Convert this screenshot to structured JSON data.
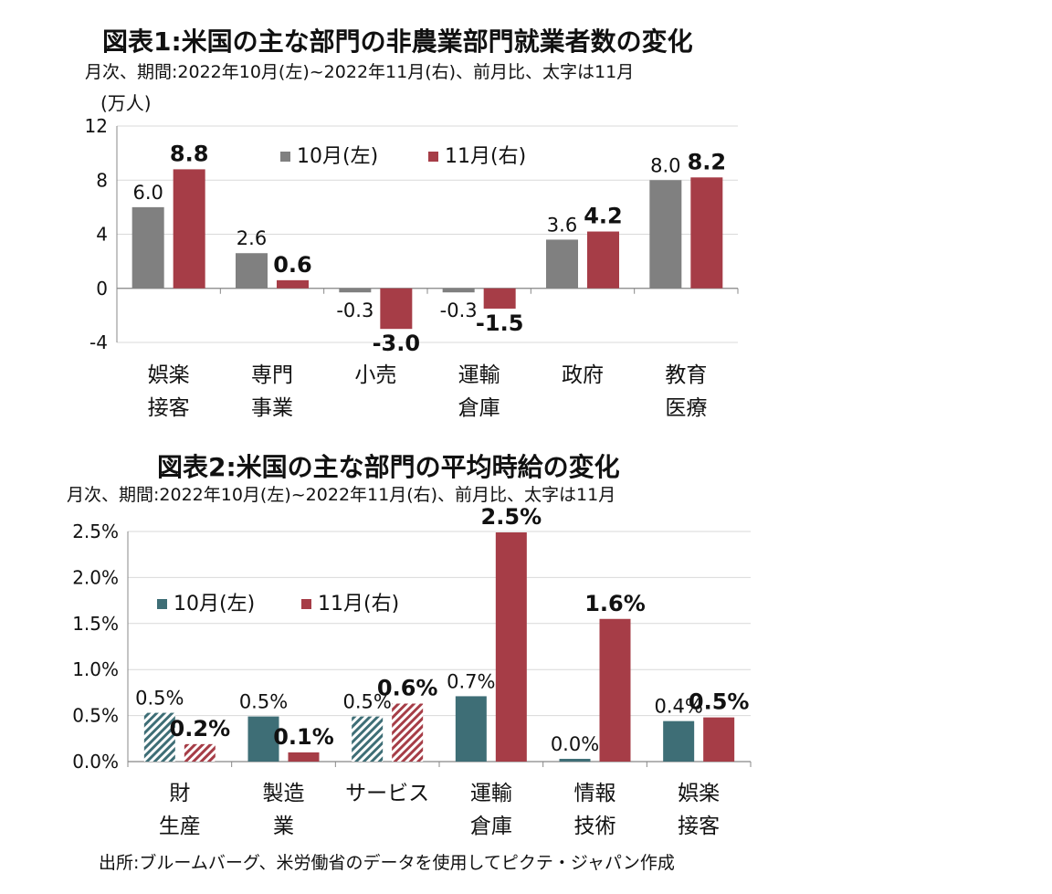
{
  "chart_data": [
    {
      "type": "bar",
      "title": "図表1:米国の主な部門の非農業部門就業者数の変化",
      "subtitle": "月次、期間:2022年10月(左)~2022年11月(右)、前月比、太字は11月",
      "ylabel": "(万人)",
      "ylim": [
        -4,
        12
      ],
      "yticks": [
        "12",
        "8",
        "4",
        "0",
        "-4"
      ],
      "categories": [
        [
          "娯楽",
          "接客"
        ],
        [
          "専門",
          "事業"
        ],
        [
          "小売"
        ],
        [
          "運輸",
          "倉庫"
        ],
        [
          "政府"
        ],
        [
          "教育",
          "医療"
        ]
      ],
      "series": [
        {
          "name": "10月(左)",
          "color": "#808080",
          "values": [
            6.0,
            2.6,
            -0.3,
            -0.3,
            3.6,
            8.0
          ],
          "labels": [
            "6.0",
            "2.6",
            "-0.3",
            "-0.3",
            "3.6",
            "8.0"
          ]
        },
        {
          "name": "11月(右)",
          "color": "#a63d47",
          "values": [
            8.8,
            0.6,
            -3.0,
            -1.5,
            4.2,
            8.2
          ],
          "labels": [
            "8.8",
            "0.6",
            "-3.0",
            "-1.5",
            "4.2",
            "8.2"
          ]
        }
      ],
      "grid": true,
      "legend": "top-center"
    },
    {
      "type": "bar",
      "title": "図表2:米国の主な部門の平均時給の変化",
      "subtitle": "月次、期間:2022年10月(左)~2022年11月(右)、前月比、太字は11月",
      "ylim": [
        0,
        2.5
      ],
      "yticks": [
        "2.5%",
        "2.0%",
        "1.5%",
        "1.0%",
        "0.5%",
        "0.0%"
      ],
      "categories": [
        [
          "財",
          "生産"
        ],
        [
          "製造",
          "業"
        ],
        [
          "サービス"
        ],
        [
          "運輸",
          "倉庫"
        ],
        [
          "情報",
          "技術"
        ],
        [
          "娯楽",
          "接客"
        ]
      ],
      "series": [
        {
          "name": "10月(左)",
          "color": "#3e6e76",
          "values": [
            0.53,
            0.49,
            0.49,
            0.71,
            0.03,
            0.44
          ],
          "labels": [
            "0.5%",
            "0.5%",
            "0.5%",
            "0.7%",
            "0.0%",
            "0.4%"
          ],
          "hatched": [
            true,
            false,
            true,
            false,
            false,
            false
          ]
        },
        {
          "name": "11月(右)",
          "color": "#a63d47",
          "values": [
            0.19,
            0.1,
            0.63,
            2.49,
            1.55,
            0.48
          ],
          "labels": [
            "0.2%",
            "0.1%",
            "0.6%",
            "2.5%",
            "1.6%",
            "0.5%"
          ],
          "hatched": [
            true,
            false,
            true,
            false,
            false,
            false
          ]
        }
      ],
      "grid": true,
      "legend": "top-left"
    }
  ],
  "source": "出所:ブルームバーグ、米労働省のデータを使用してピクテ・ジャパン作成"
}
